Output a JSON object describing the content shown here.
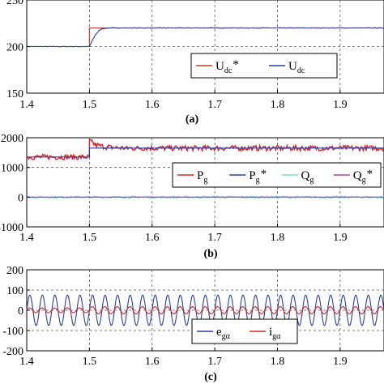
{
  "chart_data": [
    {
      "type": "line",
      "panel_label": "(a)",
      "xlim": [
        1.4,
        1.97
      ],
      "ylim": [
        150,
        250
      ],
      "x_ticks": [
        "1.4",
        "1.5",
        "1.6",
        "1.7",
        "1.8",
        "1.9"
      ],
      "y_ticks": [
        "150",
        "200",
        "250"
      ],
      "grid": true,
      "legend_position": "bottom-right",
      "series": [
        {
          "name": "U_dc*",
          "label_main": "U",
          "label_sub": "dc",
          "label_sup": "*",
          "color": "#c0392b",
          "x": [
            1.4,
            1.5,
            1.5,
            1.97
          ],
          "y": [
            200,
            200,
            220,
            220
          ]
        },
        {
          "name": "U_dc",
          "label_main": "U",
          "label_sub": "dc",
          "label_sup": "",
          "color": "#2c3e9e",
          "x": [
            1.4,
            1.5,
            1.505,
            1.51,
            1.515,
            1.52,
            1.53,
            1.97
          ],
          "y": [
            200,
            200,
            207,
            213,
            217,
            219,
            220,
            220
          ]
        }
      ]
    },
    {
      "type": "line",
      "panel_label": "(b)",
      "xlim": [
        1.4,
        1.97
      ],
      "ylim": [
        -1000,
        2000
      ],
      "x_ticks": [
        "1.4",
        "1.5",
        "1.6",
        "1.7",
        "1.8",
        "1.9"
      ],
      "y_ticks": [
        "-1000",
        "0",
        "1000",
        "2000"
      ],
      "grid": true,
      "legend_position": "right",
      "series": [
        {
          "name": "P_g",
          "label_main": "P",
          "label_sub": "g",
          "label_sup": "",
          "color": "#d62728",
          "x": [
            1.4,
            1.5,
            1.5,
            1.51,
            1.53,
            1.56,
            1.97
          ],
          "y": [
            1350,
            1350,
            1900,
            1750,
            1680,
            1650,
            1650
          ]
        },
        {
          "name": "P_g*",
          "label_main": "P",
          "label_sub": "g",
          "label_sup": "*",
          "color": "#2c3e9e",
          "x": [
            1.4,
            1.5,
            1.5,
            1.97
          ],
          "y": [
            1350,
            1350,
            1650,
            1650
          ]
        },
        {
          "name": "Q_g",
          "label_main": "Q",
          "label_sub": "g",
          "label_sup": "",
          "color": "#7fd8e0",
          "x": [
            1.4,
            1.97
          ],
          "y": [
            0,
            0
          ]
        },
        {
          "name": "Q_g*",
          "label_main": "Q",
          "label_sub": "g",
          "label_sup": "*",
          "color": "#b03ab0",
          "x": [
            1.4,
            1.97
          ],
          "y": [
            0,
            0
          ]
        }
      ]
    },
    {
      "type": "line",
      "panel_label": "(c)",
      "xlim": [
        1.4,
        1.97
      ],
      "ylim": [
        -200,
        200
      ],
      "x_ticks": [
        "1.4",
        "1.5",
        "1.6",
        "1.7",
        "1.8",
        "1.9"
      ],
      "y_ticks": [
        "-200",
        "-100",
        "0",
        "100",
        "200"
      ],
      "grid": true,
      "legend_position": "bottom-right",
      "series": [
        {
          "name": "e_gα",
          "label_main": "e",
          "label_sub": "gα",
          "label_sup": "",
          "color": "#2c3e9e",
          "waveform": "sine",
          "amplitude": 75,
          "frequency_hz": 50
        },
        {
          "name": "i_gα",
          "label_main": "i",
          "label_sub": "gα",
          "label_sup": "",
          "color": "#d62728",
          "waveform": "sine",
          "amplitude_before": 12,
          "amplitude_after": 18,
          "step_x": 1.5,
          "frequency_hz": 50
        }
      ]
    }
  ]
}
